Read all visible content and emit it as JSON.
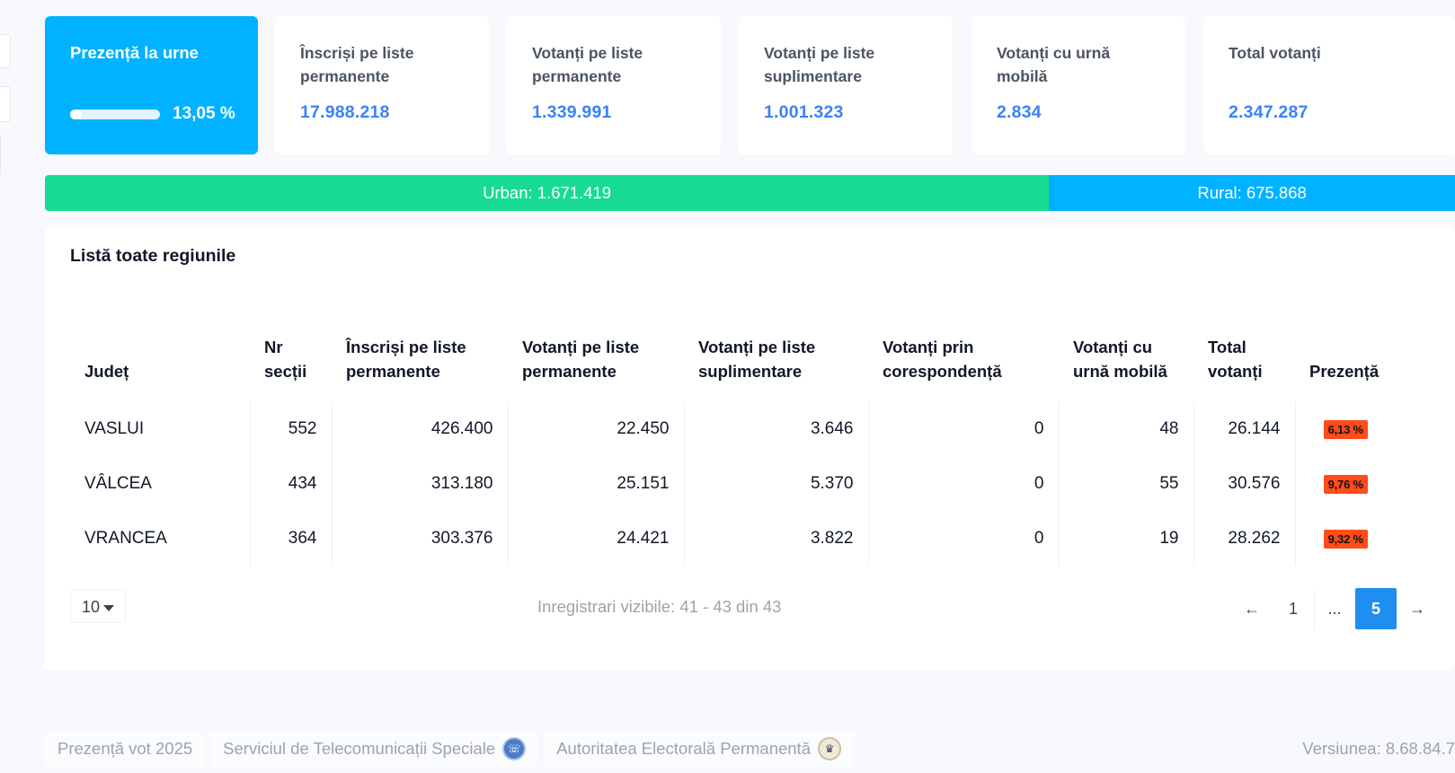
{
  "presence_card": {
    "title": "Prezență la urne",
    "progress_percent": 13.05,
    "progress_text": "13,05 %"
  },
  "stat_cards": [
    {
      "title_line1": "Înscriși pe liste",
      "title_line2": "permanente",
      "value": "17.988.218"
    },
    {
      "title_line1": "Votanți pe liste",
      "title_line2": "permanente",
      "value": "1.339.991"
    },
    {
      "title_line1": "Votanți pe liste",
      "title_line2": "suplimentare",
      "value": "1.001.323"
    },
    {
      "title_line1": "Votanți cu urnă",
      "title_line2": "mobilă",
      "value": "2.834"
    },
    {
      "title_line1": "Total votanți",
      "title_line2": "",
      "value": "2.347.287"
    }
  ],
  "split": {
    "urban_label": "Urban: 1.671.419",
    "rural_label": "Rural: 675.868",
    "urban_value": 1671419,
    "rural_value": 675868
  },
  "panel": {
    "title": "Listă toate regiunile"
  },
  "table": {
    "headers": [
      {
        "l1": "",
        "l2": "Județ"
      },
      {
        "l1": "Nr",
        "l2": "secții"
      },
      {
        "l1": "Înscriși pe liste",
        "l2": "permanente"
      },
      {
        "l1": "Votanți pe liste",
        "l2": "permanente"
      },
      {
        "l1": "Votanți pe liste",
        "l2": "suplimentare"
      },
      {
        "l1": "Votanți prin",
        "l2": "corespondență"
      },
      {
        "l1": "Votanți cu",
        "l2": "urnă mobilă"
      },
      {
        "l1": "Total",
        "l2": "votanți"
      },
      {
        "l1": "",
        "l2": "Prezență"
      }
    ],
    "rows": [
      {
        "judet": "VASLUI",
        "sectii": "552",
        "inscrisi": "426.400",
        "vot_perm": "22.450",
        "vot_supl": "3.646",
        "vot_coresp": "0",
        "vot_mobila": "48",
        "total": "26.144",
        "prezenta": "6,13 %"
      },
      {
        "judet": "VÂLCEA",
        "sectii": "434",
        "inscrisi": "313.180",
        "vot_perm": "25.151",
        "vot_supl": "5.370",
        "vot_coresp": "0",
        "vot_mobila": "55",
        "total": "30.576",
        "prezenta": "9,76 %"
      },
      {
        "judet": "VRANCEA",
        "sectii": "364",
        "inscrisi": "303.376",
        "vot_perm": "24.421",
        "vot_supl": "3.822",
        "vot_coresp": "0",
        "vot_mobila": "19",
        "total": "28.262",
        "prezenta": "9,32 %"
      }
    ]
  },
  "pagination": {
    "page_size": "10",
    "records_info": "Inregistrari vizibile: 41 - 43 din 43",
    "prev": "←",
    "first_page": "1",
    "ellipsis": "...",
    "current_page": "5",
    "next": "→"
  },
  "footer": {
    "app_name": "Prezență vot 2025",
    "sts": "Serviciul de Telecomunicații Speciale",
    "aep": "Autoritatea Electorală Permanentă",
    "version": "Versiunea: 8.68.84.7"
  },
  "colors": {
    "primary": "#00b2ff",
    "urban": "#18db93",
    "rural": "#00b2ff",
    "value_blue": "#3b82f6",
    "badge_red": "#ff4c1a",
    "active_page": "#1f8ef1"
  }
}
